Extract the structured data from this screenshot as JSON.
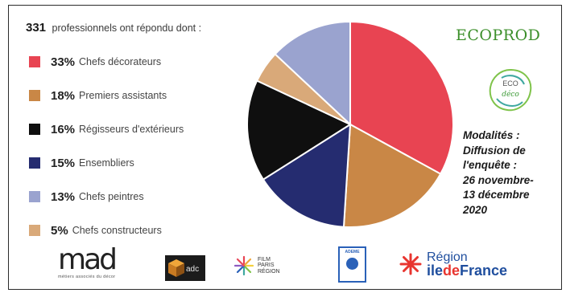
{
  "headline": {
    "count": "331",
    "text": "professionnels ont répondu dont :"
  },
  "chart_data": {
    "type": "pie",
    "title": "",
    "slices": [
      {
        "label": "Chefs décorateurs",
        "pct_label": "33%",
        "value": 33,
        "color": "#e84452"
      },
      {
        "label": "Premiers assistants",
        "pct_label": "18%",
        "value": 18,
        "color": "#c98746"
      },
      {
        "label": "Régisseurs d'extérieurs",
        "pct_label": "16%",
        "value": 16,
        "color": "#0f0f0f"
      },
      {
        "label": "Ensembliers",
        "pct_label": "15%",
        "value": 15,
        "color": "#252c70"
      },
      {
        "label": "Chefs peintres",
        "pct_label": "13%",
        "value": 13,
        "color": "#9aa3cf"
      },
      {
        "label": "Chefs constructeurs",
        "pct_label": "5%",
        "value": 5,
        "color": "#d9a979"
      }
    ],
    "pie_order": [
      0,
      1,
      3,
      2,
      5,
      4
    ],
    "legend_position": "left"
  },
  "modalites": "Modalités :\nDiffusion de\nl'enquête :\n 26 novembre-\n13 décembre\n2020",
  "logos": {
    "ecoprod": "ECOPROD",
    "eco_deco": "ECO",
    "mad": "mad",
    "mad_sub": "métiers associés du décor",
    "adc": "adc",
    "film": "FILM\nPARIS\nRÉGION",
    "ademe": "ADEME",
    "region_a": "Région",
    "region_b1": "ile",
    "region_b2": "de",
    "region_b3": "France"
  }
}
